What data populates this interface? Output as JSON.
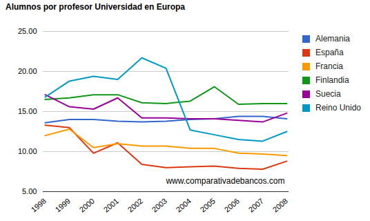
{
  "chart_data": {
    "type": "line",
    "title": "Alumnos por profesor Universidad en Europa",
    "categories": [
      "1998",
      "1999",
      "2000",
      "2001",
      "2002",
      "2003",
      "2004",
      "2005",
      "2006",
      "2007",
      "2008"
    ],
    "series": [
      {
        "name": "Alemania",
        "color": "#3366cc",
        "values": [
          13.6,
          14.0,
          14.0,
          13.8,
          13.7,
          13.8,
          14.0,
          14.1,
          14.4,
          14.4,
          14.1
        ]
      },
      {
        "name": "España",
        "color": "#dc3912",
        "values": [
          13.3,
          13.0,
          9.8,
          11.1,
          8.4,
          8.0,
          8.1,
          8.2,
          7.9,
          7.8,
          8.8
        ]
      },
      {
        "name": "Francia",
        "color": "#ff9900",
        "values": [
          12.0,
          12.8,
          10.5,
          11.0,
          10.7,
          10.7,
          10.4,
          10.4,
          9.8,
          9.7,
          9.5
        ]
      },
      {
        "name": "Finlandia",
        "color": "#109618",
        "values": [
          16.5,
          16.7,
          17.1,
          17.1,
          16.1,
          16.0,
          16.3,
          18.1,
          15.9,
          16.0,
          16.0
        ]
      },
      {
        "name": "Suecia",
        "color": "#990099",
        "values": [
          17.1,
          15.6,
          15.3,
          16.7,
          14.2,
          14.2,
          14.1,
          14.1,
          13.9,
          13.7,
          14.8
        ]
      },
      {
        "name": "Reino Unido",
        "color": "#0099c6",
        "values": [
          16.8,
          18.8,
          19.4,
          19.0,
          21.7,
          20.4,
          12.7,
          12.1,
          11.5,
          11.3,
          12.5
        ]
      }
    ],
    "ylim": [
      5,
      25
    ],
    "yticks": [
      {
        "value": 5,
        "label": "5.00"
      },
      {
        "value": 10,
        "label": "10.00"
      },
      {
        "value": 15,
        "label": "15.00"
      },
      {
        "value": 20,
        "label": "20.00"
      },
      {
        "value": 25,
        "label": "25.00"
      }
    ],
    "grid": true,
    "legend": "right",
    "annotations": [
      {
        "text": "www.comparativadebancos.com"
      }
    ]
  }
}
